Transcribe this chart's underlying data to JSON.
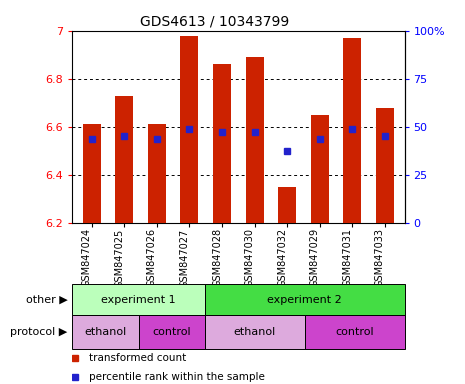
{
  "title": "GDS4613 / 10343799",
  "samples": [
    "GSM847024",
    "GSM847025",
    "GSM847026",
    "GSM847027",
    "GSM847028",
    "GSM847030",
    "GSM847032",
    "GSM847029",
    "GSM847031",
    "GSM847033"
  ],
  "bar_tops": [
    6.61,
    6.73,
    6.61,
    6.98,
    6.86,
    6.89,
    6.35,
    6.65,
    6.97,
    6.68
  ],
  "bar_bottom": 6.2,
  "blue_dot_y": [
    6.55,
    6.56,
    6.55,
    6.59,
    6.58,
    6.58,
    6.5,
    6.55,
    6.59,
    6.56
  ],
  "ylim": [
    6.2,
    7.0
  ],
  "yticks": [
    6.2,
    6.4,
    6.6,
    6.8,
    7.0
  ],
  "ytick_labels": [
    "6.2",
    "6.4",
    "6.6",
    "6.8",
    "7"
  ],
  "right_yticks_pct": [
    0,
    25,
    50,
    75,
    100
  ],
  "right_ytick_labels": [
    "0",
    "25",
    "50",
    "75",
    "100%"
  ],
  "bar_color": "#cc2200",
  "blue_color": "#2222cc",
  "other_row": [
    {
      "label": "experiment 1",
      "start": 0,
      "end": 4,
      "color": "#bbffbb"
    },
    {
      "label": "experiment 2",
      "start": 4,
      "end": 10,
      "color": "#44dd44"
    }
  ],
  "protocol_row": [
    {
      "label": "ethanol",
      "start": 0,
      "end": 2,
      "color": "#ddaadd"
    },
    {
      "label": "control",
      "start": 2,
      "end": 4,
      "color": "#cc44cc"
    },
    {
      "label": "ethanol",
      "start": 4,
      "end": 7,
      "color": "#ddaadd"
    },
    {
      "label": "control",
      "start": 7,
      "end": 10,
      "color": "#cc44cc"
    }
  ],
  "legend_items": [
    {
      "color": "#cc2200",
      "label": "transformed count"
    },
    {
      "color": "#2222cc",
      "label": "percentile rank within the sample"
    }
  ]
}
